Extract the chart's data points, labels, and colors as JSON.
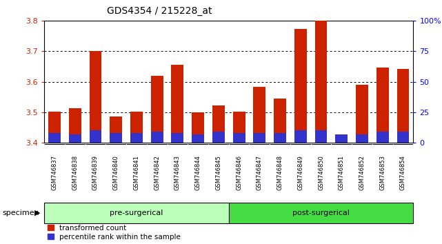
{
  "title": "GDS4354 / 215228_at",
  "samples": [
    "GSM746837",
    "GSM746838",
    "GSM746839",
    "GSM746840",
    "GSM746841",
    "GSM746842",
    "GSM746843",
    "GSM746844",
    "GSM746845",
    "GSM746846",
    "GSM746847",
    "GSM746848",
    "GSM746849",
    "GSM746850",
    "GSM746851",
    "GSM746852",
    "GSM746853",
    "GSM746854"
  ],
  "transformed_count": [
    3.502,
    3.513,
    3.7,
    3.487,
    3.501,
    3.619,
    3.655,
    3.5,
    3.523,
    3.502,
    3.584,
    3.545,
    3.773,
    3.8,
    3.42,
    3.59,
    3.647,
    3.643
  ],
  "percentile_rank_pct": [
    8,
    7,
    10,
    8,
    8,
    9,
    8,
    7,
    9,
    8,
    8,
    8,
    10,
    10,
    7,
    7,
    9,
    9
  ],
  "bar_bottom": 3.4,
  "ylim_left": [
    3.4,
    3.8
  ],
  "ylim_right": [
    0,
    100
  ],
  "yticks_left": [
    3.4,
    3.5,
    3.6,
    3.7,
    3.8
  ],
  "yticks_right": [
    0,
    25,
    50,
    75,
    100
  ],
  "red_color": "#cc2200",
  "blue_color": "#3333cc",
  "pre_surgical_count": 9,
  "post_surgical_count": 9,
  "pre_label": "pre-surgerical",
  "post_label": "post-surgerical",
  "specimen_label": "specimen",
  "legend_red": "transformed count",
  "legend_blue": "percentile rank within the sample",
  "group_bg_pre": "#bbffbb",
  "group_bg_post": "#44dd44",
  "xlabel_area_bg": "#cccccc"
}
